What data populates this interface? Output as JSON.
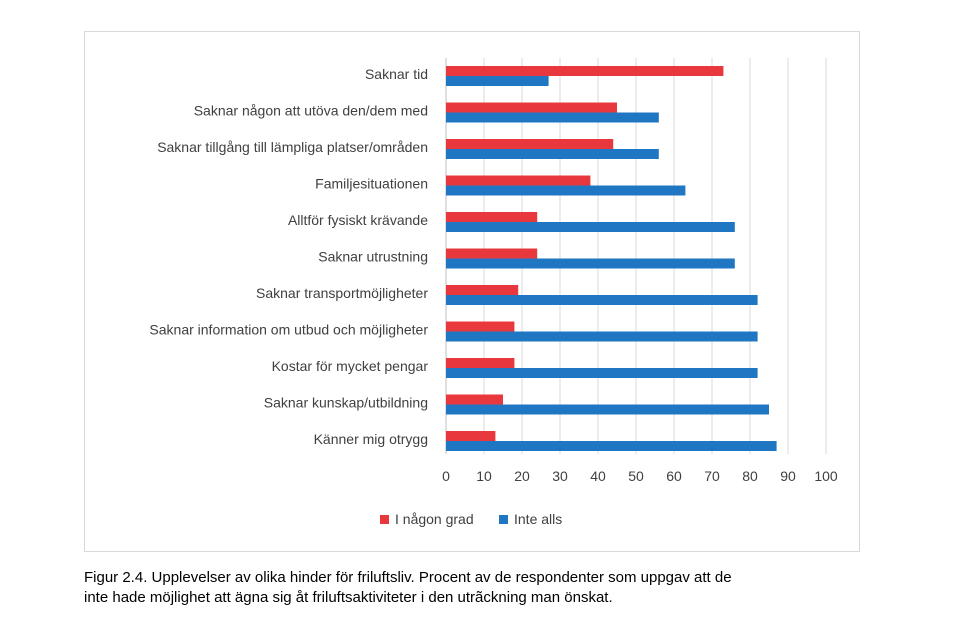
{
  "caption": {
    "line1": "Figur 2.4. Upplevelser av olika hinder för friluftsliv. Procent av de respondenter som uppgav att de",
    "line2": "inte hade möjlighet att ägna sig åt friluftsaktiviteter i den utrãckning man önskat."
  },
  "chart_data": {
    "type": "bar",
    "orientation": "horizontal",
    "categories": [
      "Saknar tid",
      "Saknar någon att utöva den/dem med",
      "Saknar tillgång till lämpliga platser/områden",
      "Familjesituationen",
      "Alltför fysiskt krävande",
      "Saknar utrustning",
      "Saknar transportmöjligheter",
      "Saknar information om utbud och möjligheter",
      "Kostar för mycket pengar",
      "Saknar kunskap/utbildning",
      "Känner mig otrygg"
    ],
    "series": [
      {
        "name": "I någon grad",
        "color": "#e8383d",
        "values": [
          73,
          45,
          44,
          38,
          24,
          24,
          19,
          18,
          18,
          15,
          13
        ]
      },
      {
        "name": "Inte alls",
        "color": "#1f77c4",
        "values": [
          27,
          56,
          56,
          63,
          76,
          76,
          82,
          82,
          82,
          85,
          87
        ]
      }
    ],
    "xlim": [
      0,
      100
    ],
    "xticks": [
      "0",
      "10",
      "20",
      "30",
      "40",
      "50",
      "60",
      "70",
      "80",
      "90",
      "100"
    ],
    "grid": "vertical",
    "legend": "bottom"
  }
}
